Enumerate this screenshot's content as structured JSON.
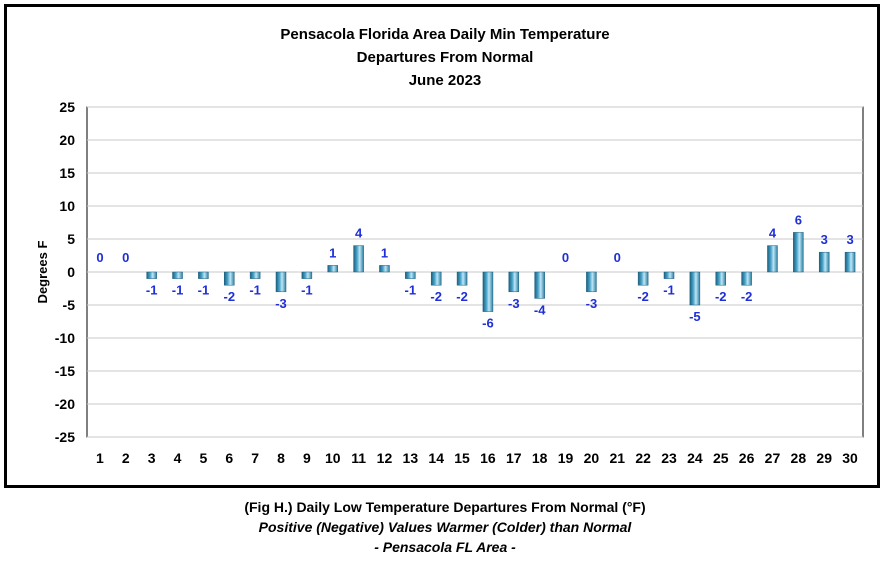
{
  "chart_data": {
    "type": "bar",
    "title_lines": [
      "Pensacola Florida Area Daily Min Temperature",
      "Departures From Normal",
      "June 2023"
    ],
    "xlabel": "",
    "ylabel": "Degrees F",
    "ylim": [
      -25,
      25
    ],
    "yticks": [
      25,
      20,
      15,
      10,
      5,
      0,
      -5,
      -10,
      -15,
      -20,
      -25
    ],
    "categories": [
      "1",
      "2",
      "3",
      "4",
      "5",
      "6",
      "7",
      "8",
      "9",
      "10",
      "11",
      "12",
      "13",
      "14",
      "15",
      "16",
      "17",
      "18",
      "19",
      "20",
      "21",
      "22",
      "23",
      "24",
      "25",
      "26",
      "27",
      "28",
      "29",
      "30"
    ],
    "values": [
      0,
      0,
      -1,
      -1,
      -1,
      -2,
      -1,
      -3,
      -1,
      1,
      4,
      1,
      -1,
      -2,
      -2,
      -6,
      -3,
      -4,
      0,
      -3,
      0,
      -2,
      -1,
      -5,
      -2,
      -2,
      4,
      6,
      3,
      3
    ],
    "grid": true,
    "legend": "none",
    "bar_color": "#4aa6cc",
    "label_color": "#1f2fd6"
  },
  "caption": {
    "line1": "(Fig H.) Daily Low Temperature Departures From Normal (°F)",
    "line2": "Positive (Negative) Values Warmer (Colder) than Normal",
    "line3": "- Pensacola FL Area -"
  }
}
